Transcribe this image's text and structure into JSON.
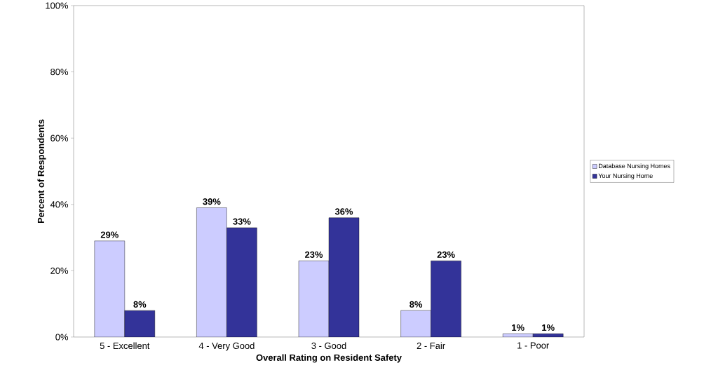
{
  "chart_data": {
    "type": "bar",
    "xlabel": "Overall Rating on Resident Safety",
    "ylabel": "Percent of Respondents",
    "categories": [
      "5 - Excellent",
      "4 - Very Good",
      "3 - Good",
      "2 - Fair",
      "1 - Poor"
    ],
    "series": [
      {
        "name": "Database Nursing Homes",
        "color": "#ccccff",
        "values": [
          29,
          39,
          23,
          8,
          1
        ],
        "value_labels": [
          "29%",
          "39%",
          "23%",
          "8%",
          "1%"
        ]
      },
      {
        "name": "Your Nursing Home",
        "color": "#333399",
        "values": [
          8,
          33,
          36,
          23,
          1
        ],
        "value_labels": [
          "8%",
          "33%",
          "36%",
          "23%",
          "1%"
        ]
      }
    ],
    "ylim": [
      0,
      100
    ],
    "yticks": [
      {
        "value": 0,
        "label": "0%"
      },
      {
        "value": 20,
        "label": "20%"
      },
      {
        "value": 40,
        "label": "40%"
      },
      {
        "value": 60,
        "label": "60%"
      },
      {
        "value": 80,
        "label": "80%"
      },
      {
        "value": 100,
        "label": "100%"
      }
    ],
    "legend": "right",
    "grid": false
  }
}
